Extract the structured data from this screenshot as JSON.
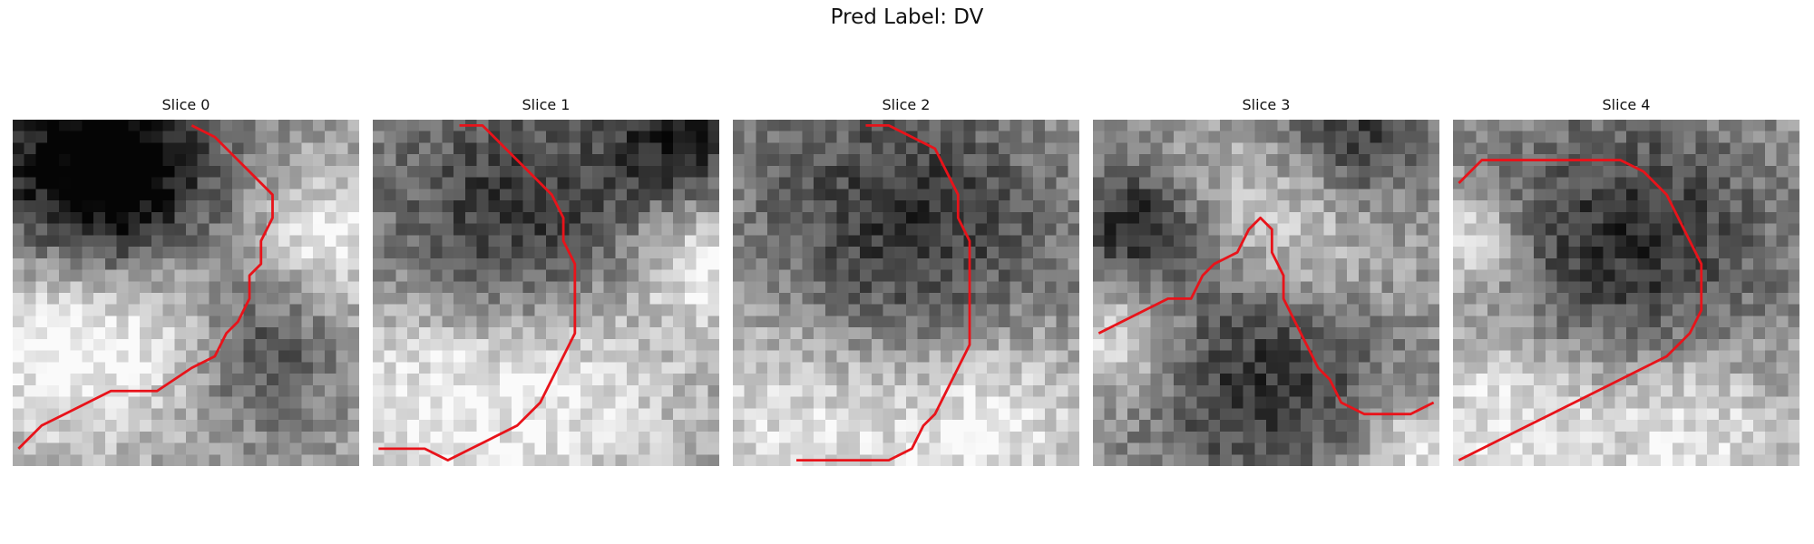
{
  "figure": {
    "title": "Pred Label: DV",
    "panels": [
      {
        "title": "Slice 0",
        "seed": 11,
        "contour": [
          [
            0,
            28
          ],
          [
            2,
            26
          ],
          [
            4,
            25
          ],
          [
            6,
            24
          ],
          [
            8,
            23
          ],
          [
            10,
            23
          ],
          [
            12,
            23
          ],
          [
            15,
            21
          ],
          [
            17,
            20
          ],
          [
            18,
            18
          ],
          [
            19,
            17
          ],
          [
            20,
            15
          ],
          [
            20,
            13
          ],
          [
            21,
            12
          ],
          [
            21,
            10
          ],
          [
            22,
            8
          ],
          [
            22,
            6
          ],
          [
            21,
            5
          ],
          [
            19,
            3
          ],
          [
            17,
            1
          ],
          [
            15,
            0
          ]
        ],
        "dark_blob": [
          [
            5,
            2,
            8
          ],
          [
            9,
            6,
            6
          ],
          [
            20,
            19,
            5
          ]
        ],
        "light_blob": [
          [
            2,
            18,
            7
          ],
          [
            14,
            17,
            6
          ],
          [
            27,
            10,
            4
          ]
        ]
      },
      {
        "title": "Slice 1",
        "seed": 23,
        "contour": [
          [
            7,
            0
          ],
          [
            9,
            0
          ],
          [
            11,
            2
          ],
          [
            13,
            4
          ],
          [
            15,
            6
          ],
          [
            16,
            8
          ],
          [
            16,
            10
          ],
          [
            17,
            12
          ],
          [
            17,
            14
          ],
          [
            17,
            16
          ],
          [
            17,
            18
          ],
          [
            16,
            20
          ],
          [
            15,
            22
          ],
          [
            14,
            24
          ],
          [
            12,
            26
          ],
          [
            10,
            27
          ],
          [
            8,
            28
          ],
          [
            6,
            29
          ],
          [
            4,
            28
          ],
          [
            2,
            28
          ],
          [
            0,
            28
          ]
        ],
        "dark_blob": [
          [
            12,
            9,
            9
          ],
          [
            26,
            1,
            4
          ]
        ],
        "light_blob": [
          [
            4,
            23,
            7
          ],
          [
            17,
            22,
            7
          ],
          [
            28,
            12,
            4
          ]
        ]
      },
      {
        "title": "Slice 2",
        "seed": 37,
        "contour": [
          [
            11,
            0
          ],
          [
            13,
            0
          ],
          [
            15,
            1
          ],
          [
            17,
            2
          ],
          [
            18,
            4
          ],
          [
            19,
            6
          ],
          [
            19,
            8
          ],
          [
            20,
            10
          ],
          [
            20,
            13
          ],
          [
            20,
            16
          ],
          [
            20,
            19
          ],
          [
            19,
            21
          ],
          [
            18,
            23
          ],
          [
            17,
            25
          ],
          [
            16,
            26
          ],
          [
            15,
            28
          ],
          [
            13,
            29
          ],
          [
            11,
            29
          ],
          [
            9,
            29
          ],
          [
            7,
            29
          ],
          [
            5,
            29
          ]
        ],
        "dark_blob": [
          [
            14,
            10,
            10
          ]
        ],
        "light_blob": [
          [
            6,
            25,
            8
          ],
          [
            22,
            25,
            6
          ]
        ]
      },
      {
        "title": "Slice 3",
        "seed": 53,
        "contour": [
          [
            0,
            18
          ],
          [
            2,
            17
          ],
          [
            4,
            16
          ],
          [
            6,
            15
          ],
          [
            8,
            15
          ],
          [
            9,
            13
          ],
          [
            10,
            12
          ],
          [
            12,
            11
          ],
          [
            13,
            9
          ],
          [
            14,
            8
          ],
          [
            15,
            9
          ],
          [
            15,
            11
          ],
          [
            16,
            13
          ],
          [
            16,
            15
          ],
          [
            17,
            17
          ],
          [
            18,
            19
          ],
          [
            19,
            21
          ],
          [
            20,
            22
          ],
          [
            21,
            24
          ],
          [
            23,
            25
          ],
          [
            25,
            25
          ],
          [
            27,
            25
          ],
          [
            29,
            24
          ]
        ],
        "dark_blob": [
          [
            14,
            21,
            8
          ],
          [
            3,
            9,
            4
          ],
          [
            22,
            1,
            5
          ]
        ],
        "light_blob": [
          [
            17,
            9,
            6
          ],
          [
            2,
            18,
            4
          ],
          [
            27,
            28,
            3
          ]
        ]
      },
      {
        "title": "Slice 4",
        "seed": 71,
        "contour": [
          [
            0,
            29
          ],
          [
            2,
            28
          ],
          [
            4,
            27
          ],
          [
            6,
            26
          ],
          [
            8,
            25
          ],
          [
            10,
            24
          ],
          [
            12,
            23
          ],
          [
            14,
            22
          ],
          [
            16,
            21
          ],
          [
            18,
            20
          ],
          [
            20,
            18
          ],
          [
            21,
            16
          ],
          [
            21,
            14
          ],
          [
            21,
            12
          ],
          [
            20,
            10
          ],
          [
            19,
            8
          ],
          [
            18,
            6
          ],
          [
            17,
            5
          ],
          [
            16,
            4
          ],
          [
            14,
            3
          ],
          [
            12,
            3
          ],
          [
            10,
            3
          ],
          [
            8,
            3
          ],
          [
            6,
            3
          ],
          [
            4,
            3
          ],
          [
            2,
            3
          ],
          [
            1,
            4
          ],
          [
            0,
            5
          ]
        ],
        "dark_blob": [
          [
            15,
            11,
            9
          ]
        ],
        "light_blob": [
          [
            5,
            25,
            6
          ],
          [
            20,
            26,
            6
          ],
          [
            1,
            10,
            3
          ]
        ]
      }
    ],
    "contour_color": "#e8131a",
    "colormap": "gray",
    "grid_size": 30
  }
}
